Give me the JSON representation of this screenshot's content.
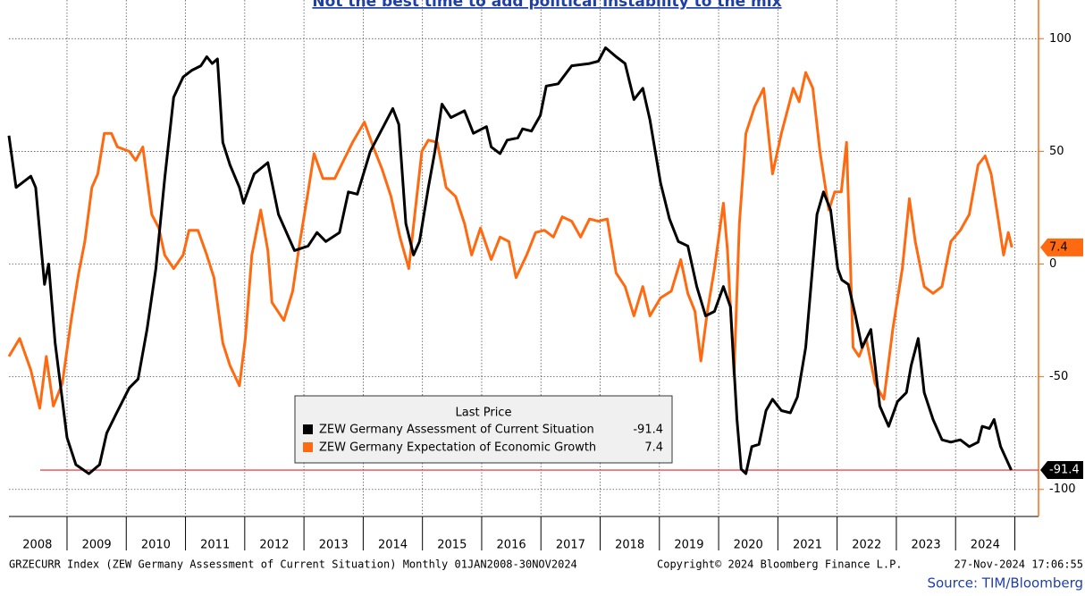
{
  "chart_data": {
    "type": "line",
    "title": "Not the best time to add political instability to the mix",
    "legend_title": "Last Price",
    "xlim": [
      2008,
      2025.4
    ],
    "ylim": [
      -112,
      114
    ],
    "yticks": [
      -100,
      -50,
      0,
      50,
      100
    ],
    "xticks": [
      {
        "value": 2008.5,
        "label": "2008"
      },
      {
        "value": 2009.5,
        "label": "2009"
      },
      {
        "value": 2010.5,
        "label": "2010"
      },
      {
        "value": 2011.5,
        "label": "2011"
      },
      {
        "value": 2012.5,
        "label": "2012"
      },
      {
        "value": 2013.5,
        "label": "2013"
      },
      {
        "value": 2014.5,
        "label": "2014"
      },
      {
        "value": 2015.5,
        "label": "2015"
      },
      {
        "value": 2016.5,
        "label": "2016"
      },
      {
        "value": 2017.5,
        "label": "2017"
      },
      {
        "value": 2018.5,
        "label": "2018"
      },
      {
        "value": 2019.5,
        "label": "2019"
      },
      {
        "value": 2020.5,
        "label": "2020"
      },
      {
        "value": 2021.5,
        "label": "2021"
      },
      {
        "value": 2022.5,
        "label": "2022"
      },
      {
        "value": 2023.5,
        "label": "2023"
      },
      {
        "value": 2024.5,
        "label": "2024"
      }
    ],
    "grid": true,
    "series": [
      {
        "name": "ZEW Germany Assessment of Current Situation",
        "color": "#000000",
        "x": [
          2008.02,
          2008.14,
          2008.39,
          2008.47,
          2008.62,
          2008.69,
          2008.8,
          2009.0,
          2009.15,
          2009.37,
          2009.55,
          2009.67,
          2009.82,
          2010.05,
          2010.2,
          2010.35,
          2010.5,
          2010.65,
          2010.8,
          2010.96,
          2011.11,
          2011.26,
          2011.36,
          2011.45,
          2011.54,
          2011.63,
          2011.75,
          2011.91,
          2011.98,
          2012.16,
          2012.39,
          2012.57,
          2012.84,
          2013.07,
          2013.22,
          2013.37,
          2013.6,
          2013.75,
          2013.9,
          2014.12,
          2014.32,
          2014.5,
          2014.6,
          2014.72,
          2014.85,
          2014.95,
          2015.1,
          2015.21,
          2015.33,
          2015.48,
          2015.71,
          2015.86,
          2016.08,
          2016.16,
          2016.31,
          2016.43,
          2016.61,
          2016.69,
          2016.84,
          2016.99,
          2017.09,
          2017.29,
          2017.52,
          2017.82,
          2017.97,
          2018.09,
          2018.27,
          2018.42,
          2018.57,
          2018.72,
          2018.84,
          2019.02,
          2019.17,
          2019.32,
          2019.48,
          2019.63,
          2019.78,
          2019.93,
          2020.08,
          2020.2,
          2020.31,
          2020.38,
          2020.46,
          2020.56,
          2020.68,
          2020.8,
          2020.91,
          2021.06,
          2021.21,
          2021.33,
          2021.47,
          2021.59,
          2021.66,
          2021.77,
          2021.89,
          2022.01,
          2022.08,
          2022.19,
          2022.31,
          2022.42,
          2022.57,
          2022.72,
          2022.87,
          2023.02,
          2023.17,
          2023.25,
          2023.37,
          2023.47,
          2023.62,
          2023.77,
          2023.92,
          2024.08,
          2024.23,
          2024.38,
          2024.45,
          2024.57,
          2024.65,
          2024.76,
          2024.94
        ],
        "values": [
          57,
          34,
          39,
          34,
          -9,
          0,
          -35,
          -77,
          -89,
          -93,
          -89,
          -75,
          -67,
          -55,
          -51,
          -29,
          -2,
          38,
          74,
          83,
          86,
          88,
          92,
          89,
          91,
          54,
          44,
          34,
          27,
          40,
          45,
          22,
          6,
          8,
          14,
          10,
          14,
          32,
          31,
          50,
          60,
          69,
          62,
          18,
          4,
          10,
          34,
          50,
          71,
          65,
          68,
          58,
          61,
          52,
          49,
          55,
          56,
          60,
          59,
          66,
          79,
          80,
          88,
          89,
          90,
          96,
          92,
          89,
          73,
          78,
          64,
          36,
          20,
          10,
          8,
          -10,
          -23,
          -21,
          -10,
          -19,
          -69,
          -91,
          -93,
          -81,
          -80,
          -65,
          -60,
          -65,
          -66,
          -59,
          -37,
          0,
          22,
          32,
          24,
          -2,
          -7,
          -9,
          -23,
          -37,
          -29,
          -63,
          -72,
          -61,
          -57,
          -45,
          -33,
          -57,
          -69,
          -78,
          -79,
          -78,
          -81,
          -79,
          -72,
          -73,
          -69,
          -81,
          -91.4
        ]
      },
      {
        "name": "ZEW Germany Expectation of Economic Growth",
        "color": "#ff6a10",
        "x": [
          2008.02,
          2008.2,
          2008.39,
          2008.54,
          2008.65,
          2008.77,
          2008.92,
          2009.07,
          2009.19,
          2009.3,
          2009.42,
          2009.52,
          2009.63,
          2009.75,
          2009.85,
          2010.05,
          2010.16,
          2010.28,
          2010.43,
          2010.55,
          2010.65,
          2010.8,
          2010.96,
          2011.06,
          2011.21,
          2011.36,
          2011.48,
          2011.63,
          2011.75,
          2011.91,
          2012.01,
          2012.12,
          2012.27,
          2012.39,
          2012.46,
          2012.66,
          2012.81,
          2012.92,
          2013.07,
          2013.17,
          2013.32,
          2013.52,
          2013.67,
          2013.82,
          2014.02,
          2014.17,
          2014.32,
          2014.47,
          2014.62,
          2014.77,
          2014.87,
          2014.99,
          2015.1,
          2015.25,
          2015.4,
          2015.56,
          2015.71,
          2015.83,
          2015.98,
          2016.16,
          2016.31,
          2016.46,
          2016.58,
          2016.76,
          2016.91,
          2017.06,
          2017.21,
          2017.36,
          2017.52,
          2017.67,
          2017.82,
          2017.97,
          2018.12,
          2018.27,
          2018.42,
          2018.57,
          2018.72,
          2018.84,
          2019.02,
          2019.2,
          2019.36,
          2019.48,
          2019.6,
          2019.7,
          2019.81,
          2019.93,
          2020.08,
          2020.15,
          2020.26,
          2020.35,
          2020.46,
          2020.61,
          2020.76,
          2020.91,
          2021.06,
          2021.26,
          2021.36,
          2021.47,
          2021.59,
          2021.71,
          2021.86,
          2021.96,
          2022.07,
          2022.16,
          2022.27,
          2022.37,
          2022.49,
          2022.64,
          2022.79,
          2022.94,
          2023.1,
          2023.22,
          2023.32,
          2023.47,
          2023.62,
          2023.77,
          2023.92,
          2024.08,
          2024.23,
          2024.38,
          2024.5,
          2024.6,
          2024.72,
          2024.81,
          2024.89,
          2024.95
        ],
        "values": [
          -41,
          -33,
          -47,
          -64,
          -41,
          -63,
          -53,
          -25,
          -5,
          10,
          34,
          40,
          58,
          58,
          52,
          50,
          46,
          52,
          22,
          16,
          4,
          -2,
          4,
          15,
          15,
          4,
          -6,
          -35,
          -45,
          -54,
          -33,
          4,
          24,
          6,
          -17,
          -25,
          -12,
          8,
          32,
          49,
          38,
          38,
          46,
          54,
          63,
          52,
          42,
          30,
          12,
          -2,
          22,
          50,
          55,
          54,
          34,
          30,
          18,
          4,
          16,
          2,
          12,
          10,
          -6,
          4,
          14,
          15,
          12,
          21,
          19,
          12,
          20,
          19,
          20,
          -4,
          -10,
          -23,
          -10,
          -23,
          -15,
          -12,
          2,
          -13,
          -21,
          -43,
          -21,
          -2,
          27,
          6,
          -49,
          18,
          58,
          70,
          78,
          40,
          58,
          78,
          72,
          85,
          78,
          50,
          24,
          32,
          32,
          54,
          -37,
          -41,
          -33,
          -53,
          -60,
          -29,
          -2,
          29,
          10,
          -10,
          -13,
          -10,
          10,
          15,
          22,
          44,
          48,
          40,
          20,
          4,
          14,
          7.4
        ]
      }
    ],
    "footer_left": "GRZECURR Index (ZEW Germany Assessment of Current Situation)  Monthly 01JAN2008-30NOV2024",
    "footer_copyright": "Copyright© 2024 Bloomberg Finance L.P.",
    "footer_timestamp": "27-Nov-2024 17:06:55",
    "source": "Source: TIM/Bloomberg"
  }
}
